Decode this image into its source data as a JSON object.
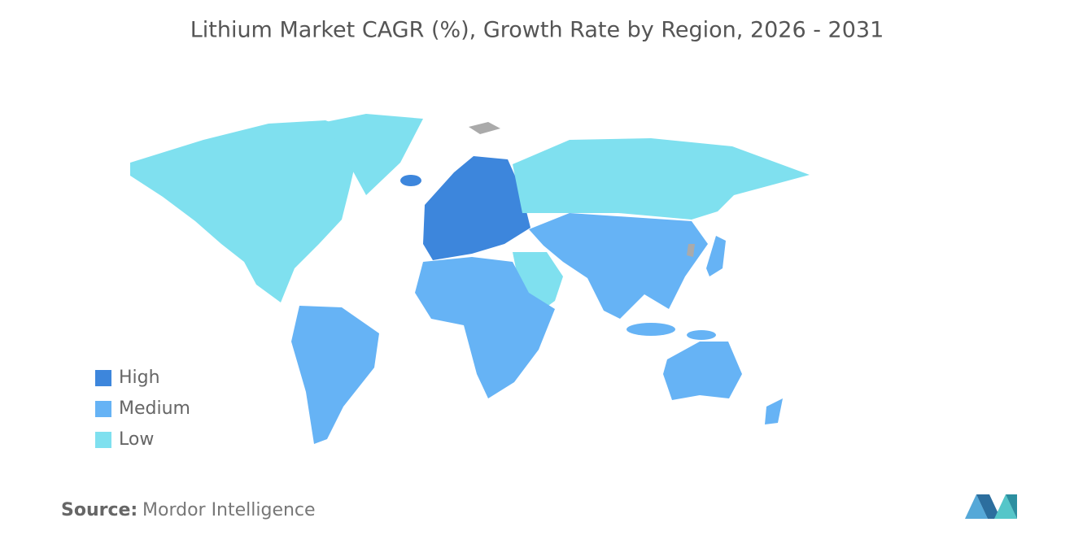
{
  "title": "Lithium Market CAGR (%), Growth Rate by Region, 2026 - 2031",
  "legend": [
    {
      "label": "High",
      "color": "#3d86dc"
    },
    {
      "label": "Medium",
      "color": "#66b3f5"
    },
    {
      "label": "Low",
      "color": "#7fe0ef"
    }
  ],
  "source": {
    "label": "Source:",
    "text": "Mordor Intelligence"
  }
}
